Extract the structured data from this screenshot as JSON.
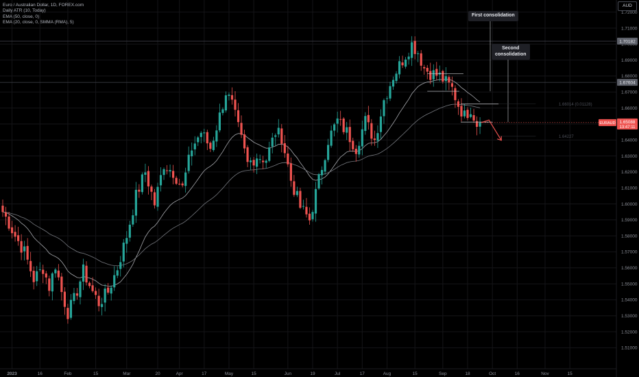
{
  "legend": {
    "symbol": "Euro / Australian Dollar, 1D, FOREX.com",
    "indicators": [
      "Daily ATR (10, Today)",
      "EMA (50, close, 0)",
      "EMA (20, close, 0, SMMA (RMA), 5)"
    ]
  },
  "currency_label": "AUD",
  "annotations": {
    "first": "First consolidation",
    "second_line1": "Second",
    "second_line2": "consolidation",
    "measure_label": "1.66014 (0.01128)",
    "target_label": "1.64227"
  },
  "price_tags": {
    "upper_level": "1.70182",
    "lower_level": "1.67604",
    "symbol_tag": "EURAUD",
    "current_price": "1.65088",
    "countdown": "13:47:11"
  },
  "colors": {
    "up": "#26a69a",
    "down": "#ef5350",
    "ema_fast": "#a9abb0",
    "ema_slow": "#777a80",
    "grid": "#151518",
    "axis_text": "#8c8f98"
  },
  "chart_data": {
    "type": "candlestick",
    "title": "Euro / Australian Dollar, 1D, FOREX.com",
    "ylim": [
      1.502,
      1.725
    ],
    "x_ticks": [
      {
        "i": 3,
        "label": "2023"
      },
      {
        "i": 12,
        "label": "16"
      },
      {
        "i": 21,
        "label": "Feb"
      },
      {
        "i": 30,
        "label": "15"
      },
      {
        "i": 40,
        "label": "Mar"
      },
      {
        "i": 50,
        "label": "20"
      },
      {
        "i": 57,
        "label": "Apr"
      },
      {
        "i": 65,
        "label": "17"
      },
      {
        "i": 73,
        "label": "May"
      },
      {
        "i": 81,
        "label": "15"
      },
      {
        "i": 92,
        "label": "Jun"
      },
      {
        "i": 100,
        "label": "19"
      },
      {
        "i": 108,
        "label": "Jul"
      },
      {
        "i": 116,
        "label": "17"
      },
      {
        "i": 124,
        "label": "Aug"
      },
      {
        "i": 133,
        "label": "15"
      },
      {
        "i": 142,
        "label": "Sep"
      },
      {
        "i": 150,
        "label": "18"
      },
      {
        "i": 158,
        "label": "Oct"
      },
      {
        "i": 166,
        "label": "16"
      },
      {
        "i": 175,
        "label": "Nov"
      },
      {
        "i": 183,
        "label": "15"
      }
    ],
    "y_ticks": [
      "1.72000",
      "1.71000",
      "1.70000",
      "1.69000",
      "1.68000",
      "1.67000",
      "1.66000",
      "1.65000",
      "1.64000",
      "1.63000",
      "1.62000",
      "1.61000",
      "1.60000",
      "1.59000",
      "1.58000",
      "1.57000",
      "1.56000",
      "1.55000",
      "1.54000",
      "1.53000",
      "1.52000",
      "1.51000"
    ],
    "close_path": [
      [
        0,
        1.595
      ],
      [
        2,
        1.588
      ],
      [
        4,
        1.58
      ],
      [
        7,
        1.57
      ],
      [
        10,
        1.553
      ],
      [
        13,
        1.56
      ],
      [
        15,
        1.548
      ],
      [
        17,
        1.562
      ],
      [
        19,
        1.545
      ],
      [
        21,
        1.532
      ],
      [
        23,
        1.54
      ],
      [
        26,
        1.558
      ],
      [
        29,
        1.545
      ],
      [
        31,
        1.538
      ],
      [
        34,
        1.545
      ],
      [
        37,
        1.56
      ],
      [
        40,
        1.58
      ],
      [
        43,
        1.605
      ],
      [
        46,
        1.62
      ],
      [
        49,
        1.6
      ],
      [
        52,
        1.625
      ],
      [
        55,
        1.62
      ],
      [
        58,
        1.61
      ],
      [
        61,
        1.635
      ],
      [
        64,
        1.645
      ],
      [
        67,
        1.635
      ],
      [
        70,
        1.655
      ],
      [
        72,
        1.67
      ],
      [
        74,
        1.662
      ],
      [
        77,
        1.64
      ],
      [
        79,
        1.625
      ],
      [
        82,
        1.63
      ],
      [
        85,
        1.628
      ],
      [
        88,
        1.645
      ],
      [
        90,
        1.642
      ],
      [
        93,
        1.615
      ],
      [
        96,
        1.598
      ],
      [
        99,
        1.59
      ],
      [
        102,
        1.615
      ],
      [
        105,
        1.64
      ],
      [
        108,
        1.652
      ],
      [
        111,
        1.645
      ],
      [
        114,
        1.635
      ],
      [
        117,
        1.652
      ],
      [
        120,
        1.64
      ],
      [
        123,
        1.665
      ],
      [
        126,
        1.68
      ],
      [
        129,
        1.69
      ],
      [
        132,
        1.7
      ],
      [
        134,
        1.695
      ],
      [
        136,
        1.685
      ],
      [
        138,
        1.682
      ],
      [
        141,
        1.68
      ],
      [
        143,
        1.676
      ],
      [
        145,
        1.672
      ],
      [
        147,
        1.662
      ],
      [
        149,
        1.655
      ],
      [
        151,
        1.66
      ],
      [
        153,
        1.65
      ],
      [
        154,
        1.651
      ]
    ],
    "levels": [
      1.70182,
      1.67604
    ],
    "projection": {
      "from": 1.65088,
      "target": 1.64227
    }
  }
}
